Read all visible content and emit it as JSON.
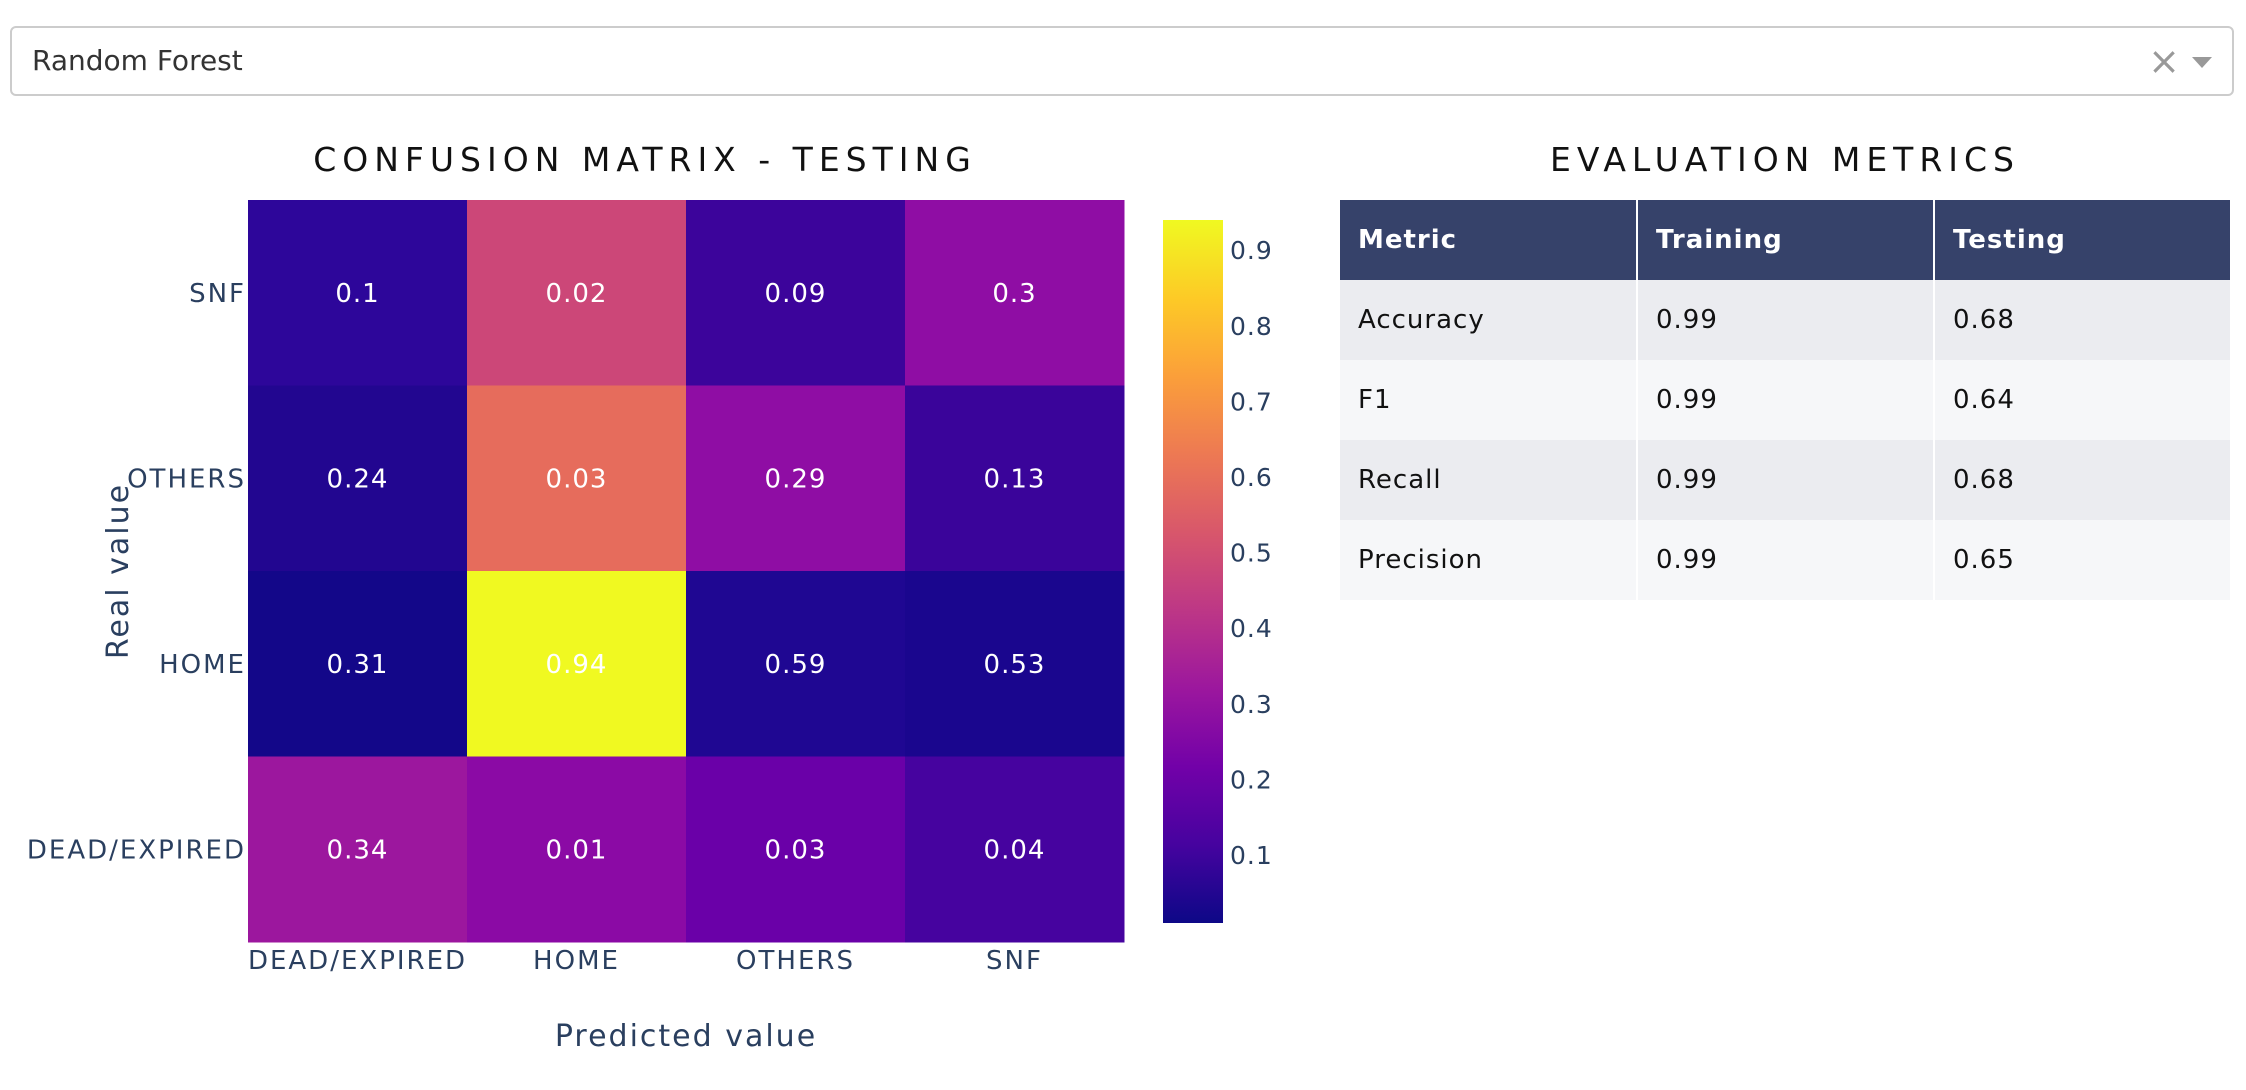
{
  "dropdown": {
    "selected": "Random Forest",
    "clear_glyph": "×"
  },
  "confusion_title": "CONFUSION MATRIX - TESTING",
  "metrics_title": "EVALUATION METRICS",
  "chart_data": {
    "type": "heatmap",
    "xlabel": "Predicted value",
    "ylabel": "Real value",
    "x_categories": [
      "DEAD/EXPIRED",
      "HOME",
      "OTHERS",
      "SNF"
    ],
    "y_categories": [
      "SNF",
      "OTHERS",
      "HOME",
      "DEAD/EXPIRED"
    ],
    "z": [
      [
        0.1,
        0.02,
        0.09,
        0.3
      ],
      [
        0.24,
        0.03,
        0.29,
        0.13
      ],
      [
        0.31,
        0.94,
        0.59,
        0.53
      ],
      [
        0.34,
        0.01,
        0.03,
        0.04
      ]
    ],
    "cell_colors": [
      [
        "#2d069a",
        "#cc4778",
        "#3c049b",
        "#8f0da4"
      ],
      [
        "#220690",
        "#e66c5c",
        "#8f0da4",
        "#3a049a"
      ],
      [
        "#130789",
        "#f0f921",
        "#1f0792",
        "#1a068e"
      ],
      [
        "#9c179e",
        "#8b0aa5",
        "#6a00a8",
        "#46039f"
      ]
    ],
    "colorbar": {
      "ticks": [
        "0.1",
        "0.2",
        "0.3",
        "0.4",
        "0.5",
        "0.6",
        "0.7",
        "0.8",
        "0.9"
      ],
      "range": [
        0.01,
        0.94
      ],
      "colorscale": [
        "#0d0887",
        "#46039f",
        "#7201a8",
        "#9c179e",
        "#bd3786",
        "#d8576b",
        "#ed7953",
        "#fb9f3a",
        "#fdca26",
        "#f0f921"
      ]
    }
  },
  "metrics_table": {
    "headers": [
      "Metric",
      "Training",
      "Testing"
    ],
    "rows": [
      [
        "Accuracy",
        "0.99",
        "0.68"
      ],
      [
        "F1",
        "0.99",
        "0.64"
      ],
      [
        "Recall",
        "0.99",
        "0.68"
      ],
      [
        "Precision",
        "0.99",
        "0.65"
      ]
    ]
  }
}
